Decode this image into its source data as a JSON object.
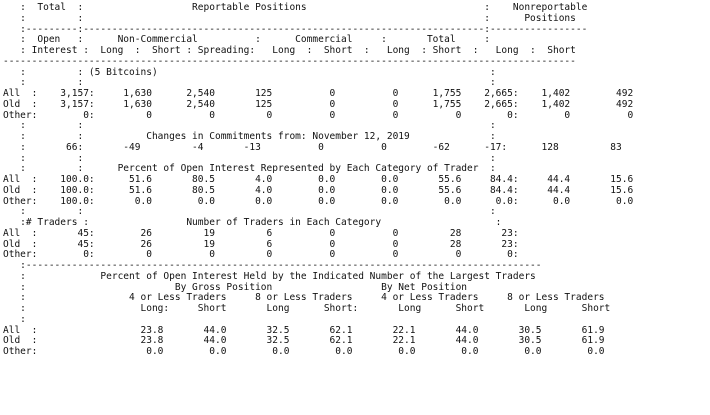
{
  "lines": [
    "   :  Total  :                   Reportable Positions                               :    Nonreportable",
    "   :         :                                                                      :      Positions",
    "   :---------:----------------------------------------------------------------------:-----------------",
    "   :  Open   :      Non-Commercial          :      Commercial     :       Total     :",
    "   : Interest :  Long  :  Short : Spreading:   Long  :  Short  :   Long  : Short  :   Long  :  Short",
    "----------------------------------------------------------------------------------------------------",
    "   :         : (5 Bitcoins)                                                          :",
    "   :         :                                                                       :",
    "All  :    3,157:     1,630      2,540       125          0          0      1,755    2,665:    1,402        492",
    "Old  :    3,157:     1,630      2,540       125          0          0      1,755    2,665:    1,402        492",
    "Other:        0:         0          0         0          0          0          0        0:        0          0",
    "   :         :                                                                       :",
    "   :         :           Changes in Commitments from: November 12, 2019              :",
    "   :       66:       -49         -4       -13          0          0        -62      -17:      128         83",
    "   :         :                                                                       :",
    "   :         :      Percent of Open Interest Represented by Each Category of Trader  :",
    "All  :    100.0:      51.6       80.5       4.0        0.0        0.0       55.6     84.4:     44.4       15.6",
    "Old  :    100.0:      51.6       80.5       4.0        0.0        0.0       55.6     84.4:     44.4       15.6",
    "Other:    100.0:       0.0        0.0       0.0        0.0        0.0        0.0      0.0:      0.0        0.0",
    "   :         :                                                                       :",
    "   :# Traders :                 Number of Traders in Each Category                    :",
    "All  :       45:        26         19         6          0          0         28       23:",
    "Old  :       45:        26         19         6          0          0         28       23:",
    "Other:        0:         0          0         0          0          0          0        0:",
    "   :------------------------------------------------------------------------------------------",
    "   :             Percent of Open Interest Held by the Indicated Number of the Largest Traders",
    "   :                          By Gross Position                   By Net Position",
    "   :                  4 or Less Traders     8 or Less Traders     4 or Less Traders     8 or Less Traders",
    "   :                    Long:     Short       Long      Short:       Long      Short       Long      Short",
    "   :",
    "All  :                  23.8       44.0       32.5       62.1       22.1       44.0       30.5       61.9",
    "Old  :                  23.8       44.0       32.5       62.1       22.1       44.0       30.5       61.9",
    "Other:                   0.0        0.0        0.0        0.0        0.0        0.0        0.0        0.0"
  ]
}
